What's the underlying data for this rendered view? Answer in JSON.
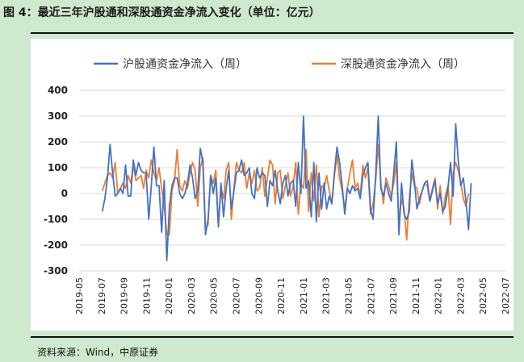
{
  "header": {
    "title": "图 4：最近三年沪股通和深股通资金净流入变化（单位：亿元）"
  },
  "footer": {
    "source": "资料来源：Wind，中原证券"
  },
  "colors": {
    "hgt": "#4472c4",
    "sgt": "#ed7d31",
    "grid": "#d9d9d9",
    "panel": "#cfe9ce"
  },
  "chart_data": {
    "type": "line",
    "title": "",
    "xlabel": "",
    "ylabel": "",
    "ylim": [
      -300,
      400
    ],
    "yticks": [
      -300,
      -200,
      -100,
      0,
      100,
      200,
      300,
      400
    ],
    "xticks": [
      "2019-05",
      "2019-07",
      "2019-09",
      "2019-11",
      "2020-01",
      "2020-03",
      "2020-05",
      "2020-07",
      "2020-09",
      "2020-11",
      "2021-01",
      "2021-03",
      "2021-05",
      "2021-07",
      "2021-09",
      "2021-11",
      "2022-01",
      "2022-03",
      "2022-05",
      "2022-07"
    ],
    "grid": "horizontal",
    "legend": "top",
    "series": [
      {
        "name": "沪股通资金净流入（周）",
        "start_week": 9,
        "values": [
          -70,
          -20,
          60,
          190,
          80,
          -10,
          0,
          20,
          0,
          110,
          -10,
          -10,
          130,
          70,
          120,
          90,
          80,
          80,
          -100,
          30,
          180,
          30,
          30,
          -150,
          50,
          -260,
          -50,
          30,
          60,
          60,
          0,
          -20,
          0,
          40,
          110,
          60,
          -20,
          10,
          175,
          120,
          -160,
          -100,
          70,
          0,
          60,
          -130,
          40,
          -90,
          20,
          90,
          -60,
          10,
          80,
          90,
          130,
          70,
          80,
          100,
          0,
          -20,
          100,
          60,
          80,
          70,
          -50,
          50,
          30,
          90,
          10,
          -40,
          40,
          70,
          -10,
          40,
          50,
          -50,
          120,
          0,
          300,
          20,
          50,
          -90,
          120,
          -110,
          80,
          -60,
          40,
          -60,
          -10,
          -40,
          80,
          180,
          120,
          30,
          -80,
          20,
          0,
          30,
          10,
          20,
          -20,
          70,
          100,
          120,
          -60,
          -100,
          70,
          300,
          20,
          -10,
          40,
          0,
          -30,
          80,
          200,
          -160,
          40,
          -80,
          -100,
          -70,
          130,
          50,
          -60,
          -20,
          10,
          40,
          50,
          -30,
          10,
          50,
          -40,
          0,
          -70,
          -50,
          20,
          120,
          -10,
          270,
          130,
          30,
          60,
          -30,
          -140,
          40
        ]
      },
      {
        "name": "深股通资金净流入（周）",
        "start_week": 9,
        "values": [
          10,
          40,
          70,
          80,
          60,
          120,
          0,
          20,
          40,
          20,
          70,
          40,
          110,
          50,
          60,
          70,
          20,
          90,
          60,
          130,
          80,
          50,
          100,
          20,
          -50,
          -160,
          -160,
          10,
          50,
          170,
          30,
          10,
          50,
          20,
          80,
          120,
          90,
          -50,
          100,
          140,
          -140,
          -120,
          70,
          40,
          90,
          -120,
          20,
          -20,
          90,
          120,
          -100,
          20,
          120,
          90,
          80,
          120,
          20,
          80,
          40,
          90,
          10,
          20,
          100,
          -10,
          60,
          130,
          110,
          -40,
          80,
          90,
          -20,
          30,
          80,
          -10,
          30,
          120,
          -80,
          40,
          20,
          170,
          -70,
          80,
          -30,
          110,
          -90,
          30,
          20,
          70,
          10,
          -40,
          70,
          150,
          60,
          10,
          -60,
          20,
          80,
          130,
          20,
          40,
          -10,
          110,
          60,
          100,
          -80,
          -40,
          50,
          190,
          40,
          -40,
          60,
          30,
          -10,
          40,
          120,
          -120,
          -20,
          -60,
          -180,
          -20,
          80,
          30,
          20,
          -40,
          10,
          40,
          30,
          -30,
          20,
          60,
          -60,
          30,
          -80,
          -10,
          30,
          -120,
          80,
          120,
          90,
          40,
          -20,
          -50,
          0
        ]
      }
    ]
  }
}
